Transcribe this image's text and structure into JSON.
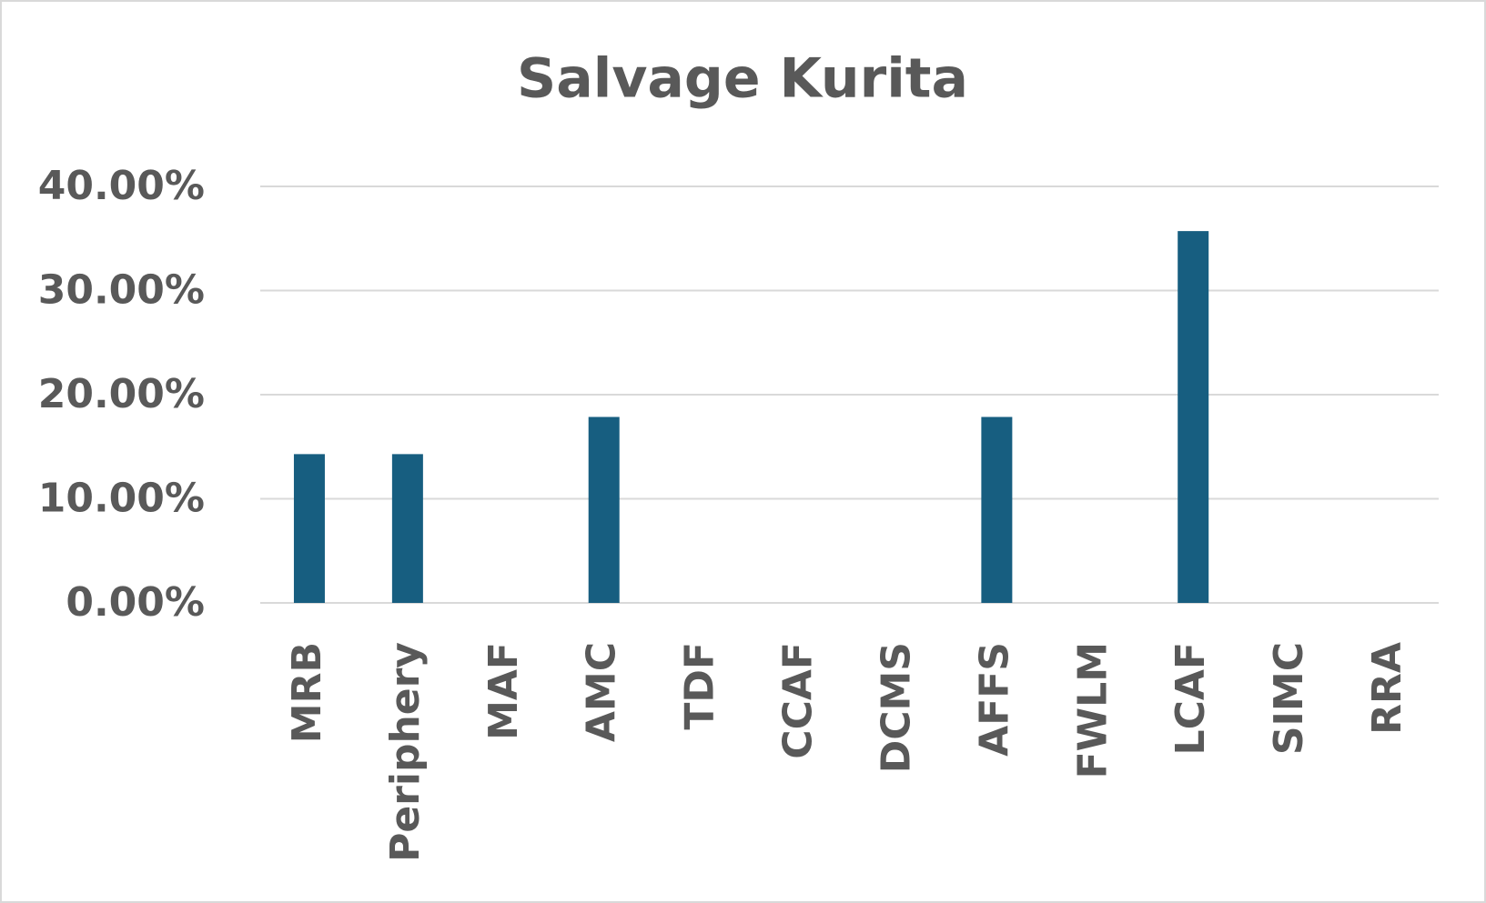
{
  "chart_data": {
    "type": "bar",
    "title": "Salvage Kurita",
    "categories": [
      "MRB",
      "Periphery",
      "MAF",
      "AMC",
      "TDF",
      "CCAF",
      "DCMS",
      "AFFS",
      "FWLM",
      "LCAF",
      "SIMC",
      "RRA"
    ],
    "values": [
      14.29,
      14.29,
      0,
      17.86,
      0,
      0,
      0,
      17.86,
      0,
      35.71,
      0,
      0
    ],
    "color": "#175e80",
    "ylim": [
      0,
      40
    ],
    "yticks": [
      {
        "value": 0,
        "label": "0.00%"
      },
      {
        "value": 10,
        "label": "10.00%"
      },
      {
        "value": 20,
        "label": "20.00%"
      },
      {
        "value": 30,
        "label": "30.00%"
      },
      {
        "value": 40,
        "label": "40.00%"
      }
    ],
    "grid": true
  }
}
